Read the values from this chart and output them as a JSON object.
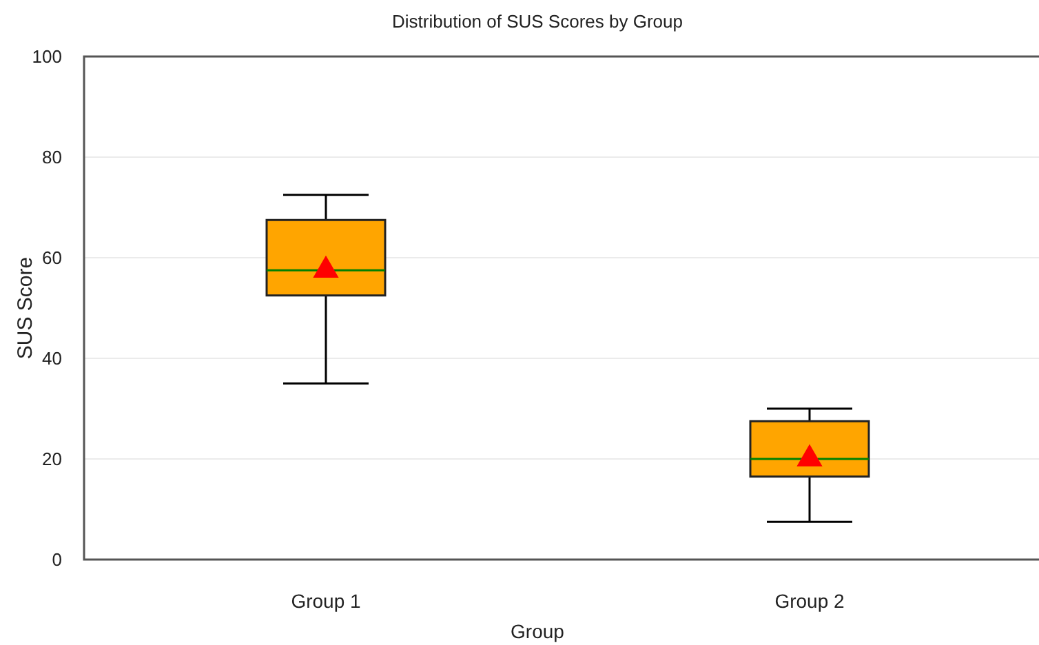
{
  "chart_data": {
    "type": "box",
    "title": "Distribution of SUS Scores by Group",
    "xlabel": "Group",
    "ylabel": "SUS Score",
    "categories": [
      "Group 1",
      "Group 2"
    ],
    "boxes": [
      {
        "low": 35,
        "q1": 52.5,
        "median": 57.5,
        "q3": 67.5,
        "high": 72.5,
        "mean": 57.5
      },
      {
        "low": 7.5,
        "q1": 16.5,
        "median": 20,
        "q3": 27.5,
        "high": 30,
        "mean": 20
      }
    ],
    "color": "#ffa500",
    "ylim": [
      0,
      100
    ],
    "yticks": [
      0,
      20,
      40,
      60,
      80,
      100
    ],
    "grid": "y"
  }
}
